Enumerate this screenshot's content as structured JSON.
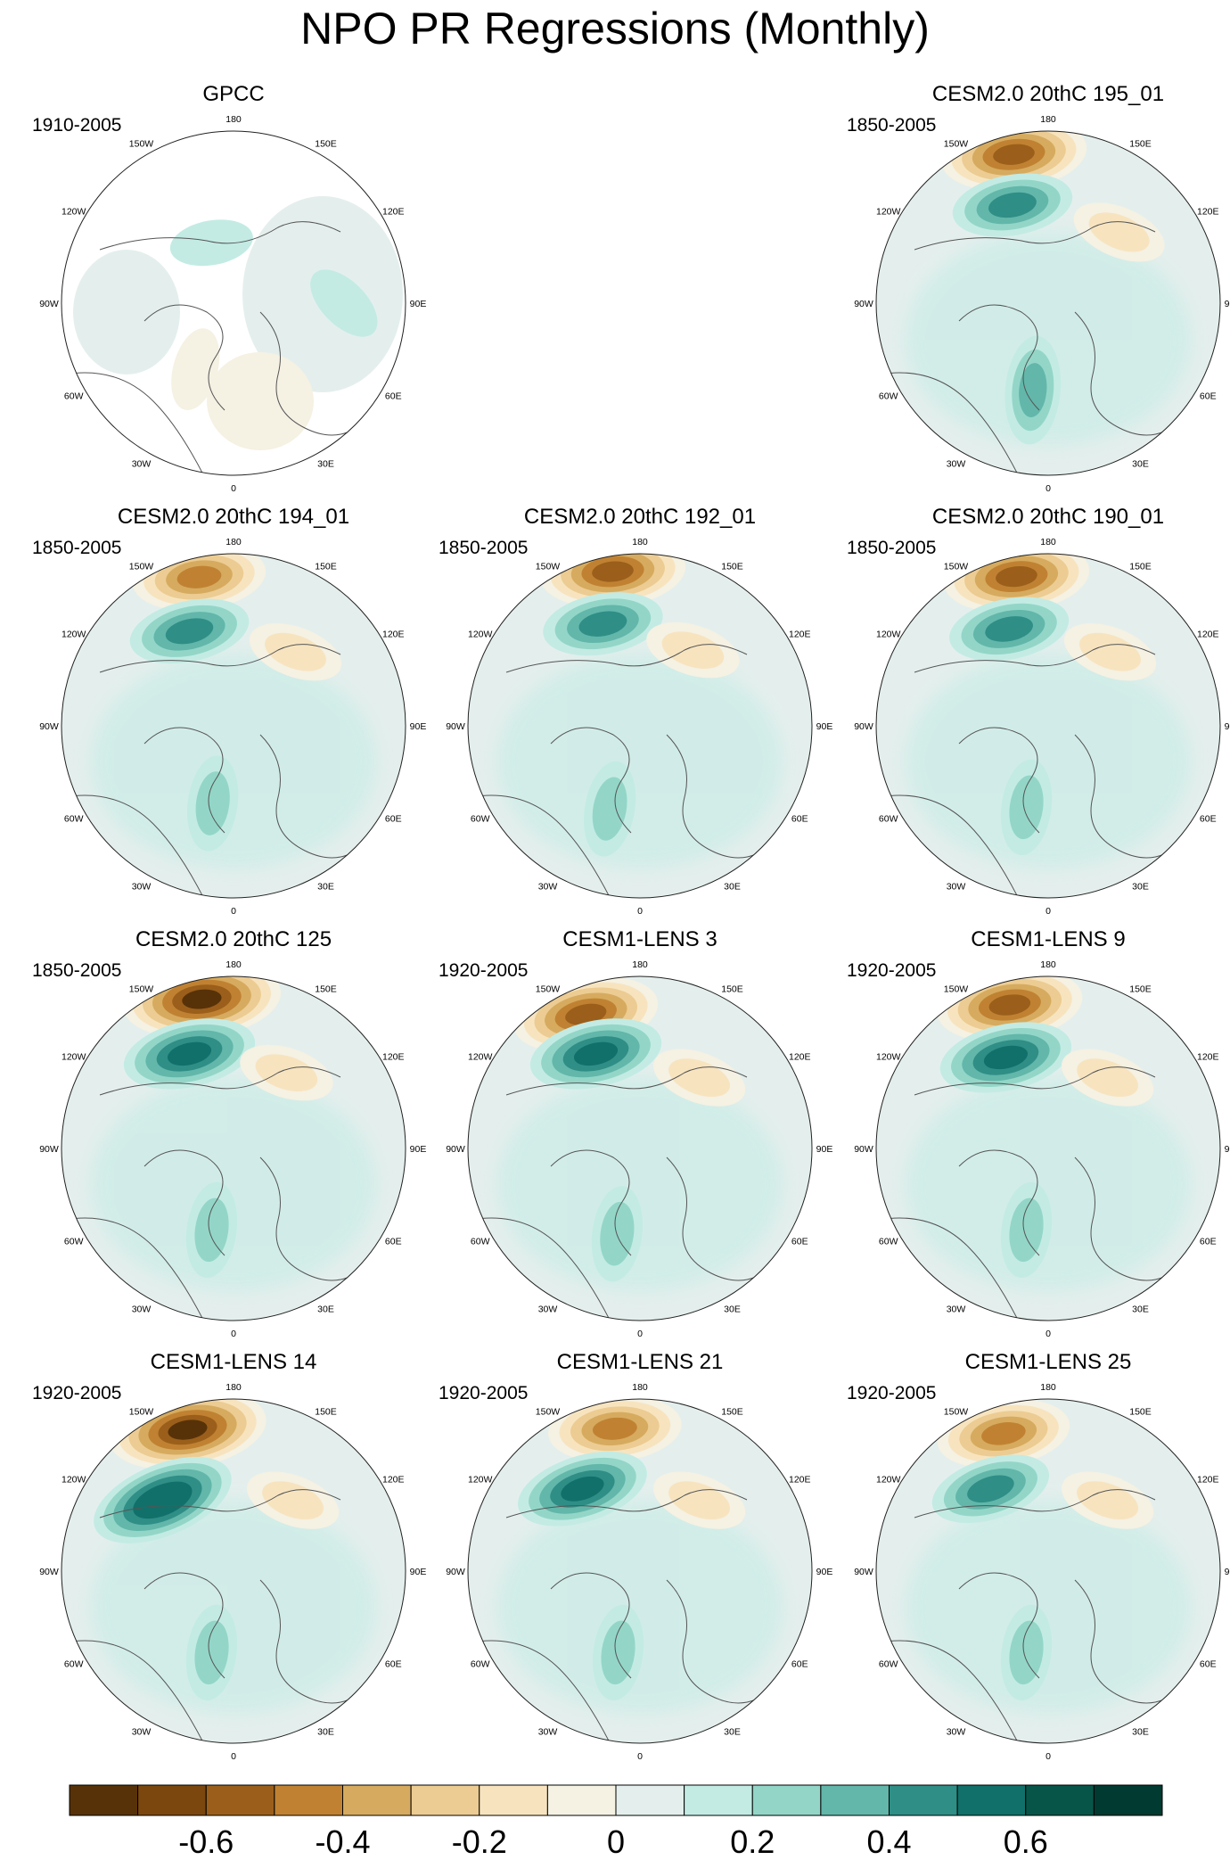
{
  "figure": {
    "title": "NPO PR Regressions (Monthly)"
  },
  "longitude_labels": [
    "180",
    "150E",
    "120E",
    "90E",
    "60E",
    "30E",
    "0",
    "30W",
    "60W",
    "90W",
    "120W",
    "150W"
  ],
  "panels": [
    {
      "title": "GPCC",
      "years": "1910-2005",
      "row": 0,
      "col": 0,
      "kind": "obs",
      "anomalies": [
        {
          "lon": 200,
          "colat": 32,
          "value": 0.1
        },
        {
          "lon": 90,
          "colat": 55,
          "value": 0.1
        },
        {
          "lon": 330,
          "colat": 38,
          "value": -0.1
        },
        {
          "lon": 10,
          "colat": 50,
          "value": -0.1
        }
      ]
    },
    {
      "title": "CESM2.0 20thC 195_01",
      "years": "1850-2005",
      "row": 0,
      "col": 2,
      "kind": "model",
      "anomalies": [
        {
          "lon": 193,
          "colat": 76,
          "value": -0.6
        },
        {
          "lon": 200,
          "colat": 52,
          "value": 0.4
        },
        {
          "lon": 135,
          "colat": 50,
          "value": -0.2
        },
        {
          "lon": 350,
          "colat": 44,
          "value": 0.3
        }
      ]
    },
    {
      "title": "CESM2.0 20thC 194_01",
      "years": "1850-2005",
      "row": 1,
      "col": 0,
      "kind": "model",
      "anomalies": [
        {
          "lon": 193,
          "colat": 76,
          "value": -0.5
        },
        {
          "lon": 205,
          "colat": 52,
          "value": 0.4
        },
        {
          "lon": 140,
          "colat": 48,
          "value": -0.2
        },
        {
          "lon": 345,
          "colat": 40,
          "value": 0.2
        }
      ]
    },
    {
      "title": "CESM2.0 20thC 192_01",
      "years": "1850-2005",
      "row": 1,
      "col": 1,
      "kind": "model",
      "anomalies": [
        {
          "lon": 190,
          "colat": 78,
          "value": -0.6
        },
        {
          "lon": 200,
          "colat": 54,
          "value": 0.4
        },
        {
          "lon": 145,
          "colat": 46,
          "value": -0.2
        },
        {
          "lon": 340,
          "colat": 44,
          "value": 0.2
        }
      ]
    },
    {
      "title": "CESM2.0 20thC 190_01",
      "years": "1850-2005",
      "row": 1,
      "col": 2,
      "kind": "model",
      "anomalies": [
        {
          "lon": 192,
          "colat": 76,
          "value": -0.6
        },
        {
          "lon": 202,
          "colat": 52,
          "value": 0.4
        },
        {
          "lon": 140,
          "colat": 48,
          "value": -0.2
        },
        {
          "lon": 345,
          "colat": 42,
          "value": 0.2
        }
      ]
    },
    {
      "title": "CESM2.0 20thC 125",
      "years": "1850-2005",
      "row": 2,
      "col": 0,
      "kind": "model",
      "anomalies": [
        {
          "lon": 192,
          "colat": 76,
          "value": -0.7
        },
        {
          "lon": 205,
          "colat": 52,
          "value": 0.5
        },
        {
          "lon": 145,
          "colat": 46,
          "value": -0.2
        },
        {
          "lon": 345,
          "colat": 42,
          "value": 0.2
        }
      ]
    },
    {
      "title": "CESM1-LENS 3",
      "years": "1920-2005",
      "row": 2,
      "col": 1,
      "kind": "model",
      "anomalies": [
        {
          "lon": 202,
          "colat": 72,
          "value": -0.6
        },
        {
          "lon": 205,
          "colat": 52,
          "value": 0.5
        },
        {
          "lon": 140,
          "colat": 46,
          "value": -0.2
        },
        {
          "lon": 345,
          "colat": 44,
          "value": 0.2
        }
      ]
    },
    {
      "title": "CESM1-LENS 9",
      "years": "1920-2005",
      "row": 2,
      "col": 2,
      "kind": "model",
      "anomalies": [
        {
          "lon": 195,
          "colat": 74,
          "value": -0.6
        },
        {
          "lon": 205,
          "colat": 50,
          "value": 0.5
        },
        {
          "lon": 140,
          "colat": 46,
          "value": -0.2
        },
        {
          "lon": 345,
          "colat": 42,
          "value": 0.2
        }
      ]
    },
    {
      "title": "CESM1-LENS 14",
      "years": "1920-2005",
      "row": 3,
      "col": 0,
      "kind": "model",
      "anomalies": [
        {
          "lon": 198,
          "colat": 74,
          "value": -0.7
        },
        {
          "lon": 225,
          "colat": 50,
          "value": 0.6
        },
        {
          "lon": 140,
          "colat": 46,
          "value": -0.2
        },
        {
          "lon": 345,
          "colat": 42,
          "value": 0.2
        }
      ]
    },
    {
      "title": "CESM1-LENS 21",
      "years": "1920-2005",
      "row": 3,
      "col": 1,
      "kind": "model",
      "anomalies": [
        {
          "lon": 190,
          "colat": 72,
          "value": -0.5
        },
        {
          "lon": 215,
          "colat": 50,
          "value": 0.5
        },
        {
          "lon": 140,
          "colat": 46,
          "value": -0.2
        },
        {
          "lon": 345,
          "colat": 42,
          "value": 0.2
        }
      ]
    },
    {
      "title": "CESM1-LENS 25",
      "years": "1920-2005",
      "row": 3,
      "col": 2,
      "kind": "model",
      "anomalies": [
        {
          "lon": 198,
          "colat": 72,
          "value": -0.5
        },
        {
          "lon": 215,
          "colat": 50,
          "value": 0.4
        },
        {
          "lon": 140,
          "colat": 46,
          "value": -0.2
        },
        {
          "lon": 345,
          "colat": 42,
          "value": 0.2
        }
      ]
    }
  ],
  "colorbar": {
    "colors": [
      "#573209",
      "#7b470f",
      "#9b5f1b",
      "#c08232",
      "#d6ab5f",
      "#eccc92",
      "#f7e4bf",
      "#f5f1e3",
      "#e4efed",
      "#c3ebe4",
      "#93d6c8",
      "#62b7aa",
      "#2f8e86",
      "#11706a",
      "#075549",
      "#003a30"
    ],
    "ticks": [
      "-0.6",
      "-0.4",
      "-0.2",
      "0",
      "0.2",
      "0.4",
      "0.6"
    ],
    "tick_values": [
      -0.6,
      -0.4,
      -0.2,
      0,
      0.2,
      0.4,
      0.6
    ],
    "min": -0.8,
    "max": 0.8
  }
}
